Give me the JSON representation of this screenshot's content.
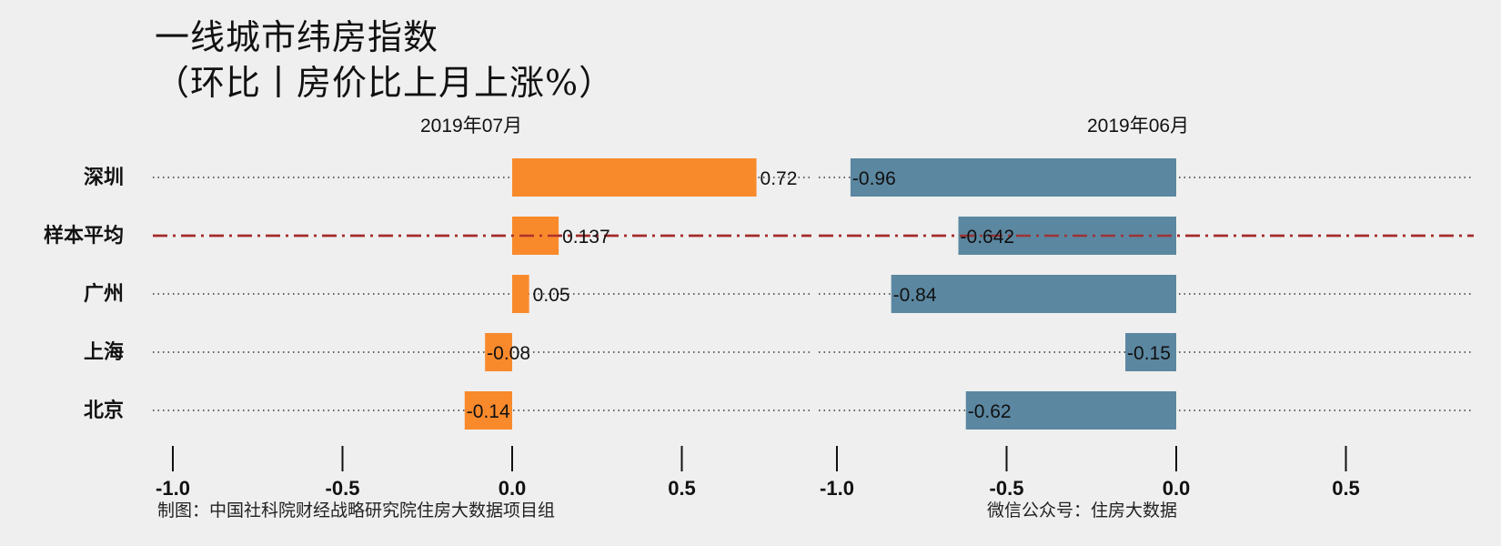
{
  "title_line1": "一线城市纬房指数",
  "title_line2": "（环比丨房价比上月上涨%）",
  "footer_left": "制图：中国社科院财经战略研究院住房大数据项目组",
  "footer_right": "微信公众号：住房大数据",
  "colors": {
    "left_bar": "#f98a2c",
    "right_bar": "#5b87a1",
    "average_line": "#a52a2a"
  },
  "chart_data": [
    {
      "type": "bar",
      "orientation": "horizontal",
      "title": "2019年07月",
      "categories": [
        "深圳",
        "样本平均",
        "广州",
        "上海",
        "北京"
      ],
      "values": [
        0.72,
        0.137,
        0.05,
        -0.08,
        -0.14
      ],
      "value_labels": [
        "0.72",
        "0.137",
        "0.05",
        "-0.08",
        "-0.14"
      ],
      "xlim": [
        -1.0,
        0.9
      ],
      "xticks": [
        -1.0,
        -0.5,
        0.0,
        0.5
      ],
      "xtick_labels": [
        "-1.0",
        "-0.5",
        "0.0",
        "0.5"
      ],
      "grid": "dotted horizontal guide per category"
    },
    {
      "type": "bar",
      "orientation": "horizontal",
      "title": "2019年06月",
      "categories": [
        "深圳",
        "样本平均",
        "广州",
        "上海",
        "北京"
      ],
      "values": [
        -0.96,
        -0.642,
        -0.84,
        -0.15,
        -0.62
      ],
      "value_labels": [
        "-0.96",
        "-0.642",
        "-0.84",
        "-0.15",
        "-0.62"
      ],
      "xlim": [
        -1.0,
        0.9
      ],
      "xticks": [
        -1.0,
        -0.5,
        0.0,
        0.5
      ],
      "xtick_labels": [
        "-1.0",
        "-0.5",
        "0.0",
        "0.5"
      ],
      "grid": "dotted horizontal guide per category"
    }
  ]
}
